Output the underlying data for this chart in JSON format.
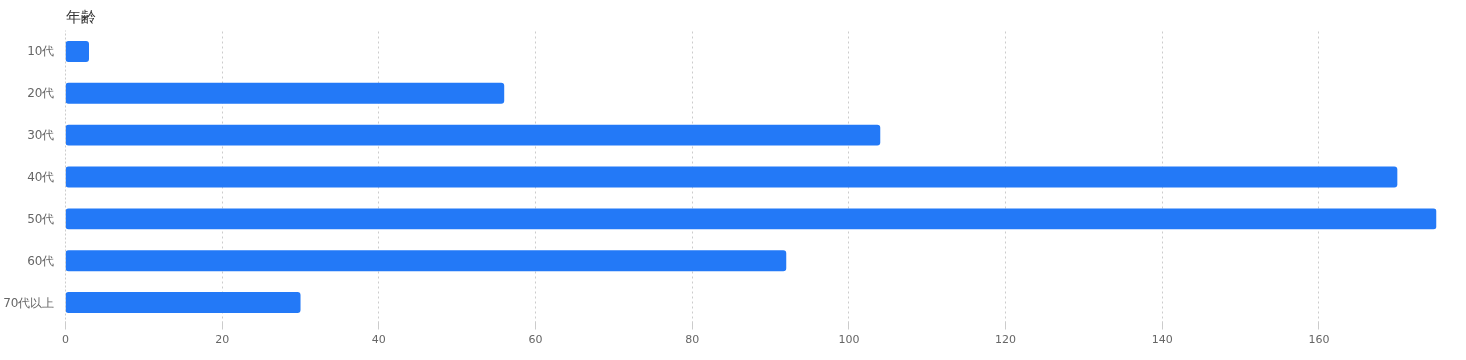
{
  "chart_data": {
    "type": "bar",
    "orientation": "horizontal",
    "title": "年齢",
    "categories": [
      "10代",
      "20代",
      "30代",
      "40代",
      "50代",
      "60代",
      "70代以上"
    ],
    "values": [
      3,
      56,
      104,
      170,
      175,
      92,
      30
    ],
    "color": "#2379f7",
    "xlim": [
      0,
      175
    ],
    "xticks": [
      0,
      20,
      40,
      60,
      80,
      100,
      120,
      140,
      160
    ],
    "grid": "x"
  }
}
